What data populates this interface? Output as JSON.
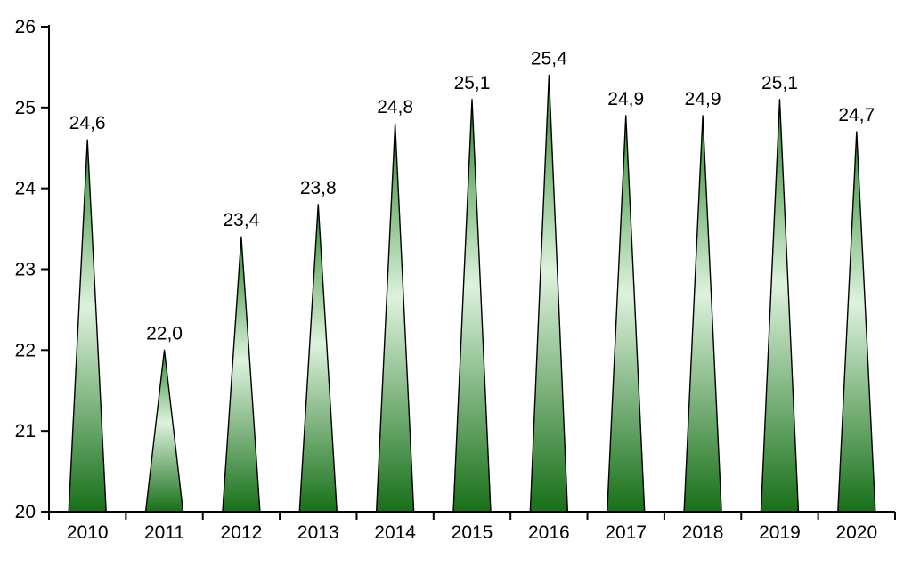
{
  "chart_data": {
    "type": "bar",
    "subtype": "cone-spike",
    "title": "",
    "xlabel": "",
    "ylabel": "",
    "categories": [
      "2010",
      "2011",
      "2012",
      "2013",
      "2014",
      "2015",
      "2016",
      "2017",
      "2018",
      "2019",
      "2020"
    ],
    "values": [
      24.6,
      22.0,
      23.4,
      23.8,
      24.8,
      25.1,
      25.4,
      24.9,
      24.9,
      25.1,
      24.7
    ],
    "value_labels": [
      "24,6",
      "22,0",
      "23,4",
      "23,8",
      "24,8",
      "25,1",
      "25,4",
      "24,9",
      "24,9",
      "25,1",
      "24,7"
    ],
    "ylim": [
      20,
      26
    ],
    "yticks": [
      20,
      21,
      22,
      23,
      24,
      25,
      26
    ],
    "grid": "off",
    "legend": "none",
    "colors": {
      "axis": "#000000",
      "text": "#000000",
      "spike_outline": "#000000",
      "spike_gradient_top": "#2e8b2e",
      "spike_gradient_mid": "#ddf2dd",
      "spike_gradient_bottom": "#177018"
    }
  }
}
